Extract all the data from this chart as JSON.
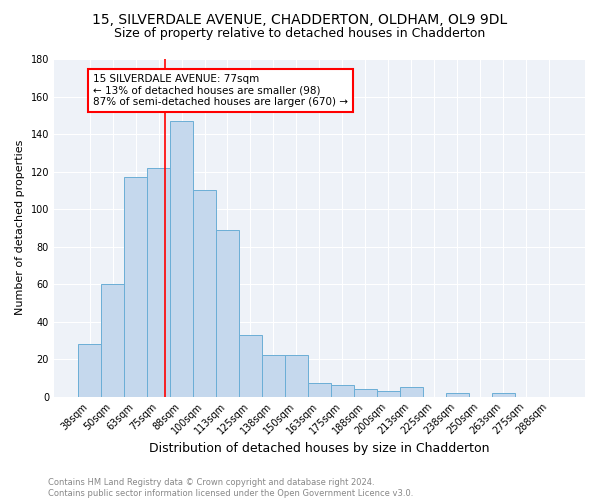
{
  "title1": "15, SILVERDALE AVENUE, CHADDERTON, OLDHAM, OL9 9DL",
  "title2": "Size of property relative to detached houses in Chadderton",
  "xlabel": "Distribution of detached houses by size in Chadderton",
  "ylabel": "Number of detached properties",
  "footnote": "Contains HM Land Registry data © Crown copyright and database right 2024.\nContains public sector information licensed under the Open Government Licence v3.0.",
  "bar_labels": [
    "38sqm",
    "50sqm",
    "63sqm",
    "75sqm",
    "88sqm",
    "100sqm",
    "113sqm",
    "125sqm",
    "138sqm",
    "150sqm",
    "163sqm",
    "175sqm",
    "188sqm",
    "200sqm",
    "213sqm",
    "225sqm",
    "238sqm",
    "250sqm",
    "263sqm",
    "275sqm",
    "288sqm"
  ],
  "bar_values": [
    28,
    60,
    117,
    122,
    147,
    110,
    89,
    33,
    22,
    22,
    7,
    6,
    4,
    3,
    5,
    0,
    2,
    0,
    2,
    0,
    0
  ],
  "bar_color": "#c5d8ed",
  "bar_edge_color": "#6baed6",
  "vline_x_index": 3.3,
  "annotation_text": "15 SILVERDALE AVENUE: 77sqm\n← 13% of detached houses are smaller (98)\n87% of semi-detached houses are larger (670) →",
  "annotation_box_color": "white",
  "annotation_box_edge_color": "red",
  "vline_color": "red",
  "ylim": [
    0,
    180
  ],
  "yticks": [
    0,
    20,
    40,
    60,
    80,
    100,
    120,
    140,
    160,
    180
  ],
  "background_color": "#eef2f8",
  "grid_color": "white",
  "title1_fontsize": 10,
  "title2_fontsize": 9,
  "xlabel_fontsize": 9,
  "ylabel_fontsize": 8,
  "tick_fontsize": 7,
  "annotation_fontsize": 7.5,
  "footnote_fontsize": 6
}
